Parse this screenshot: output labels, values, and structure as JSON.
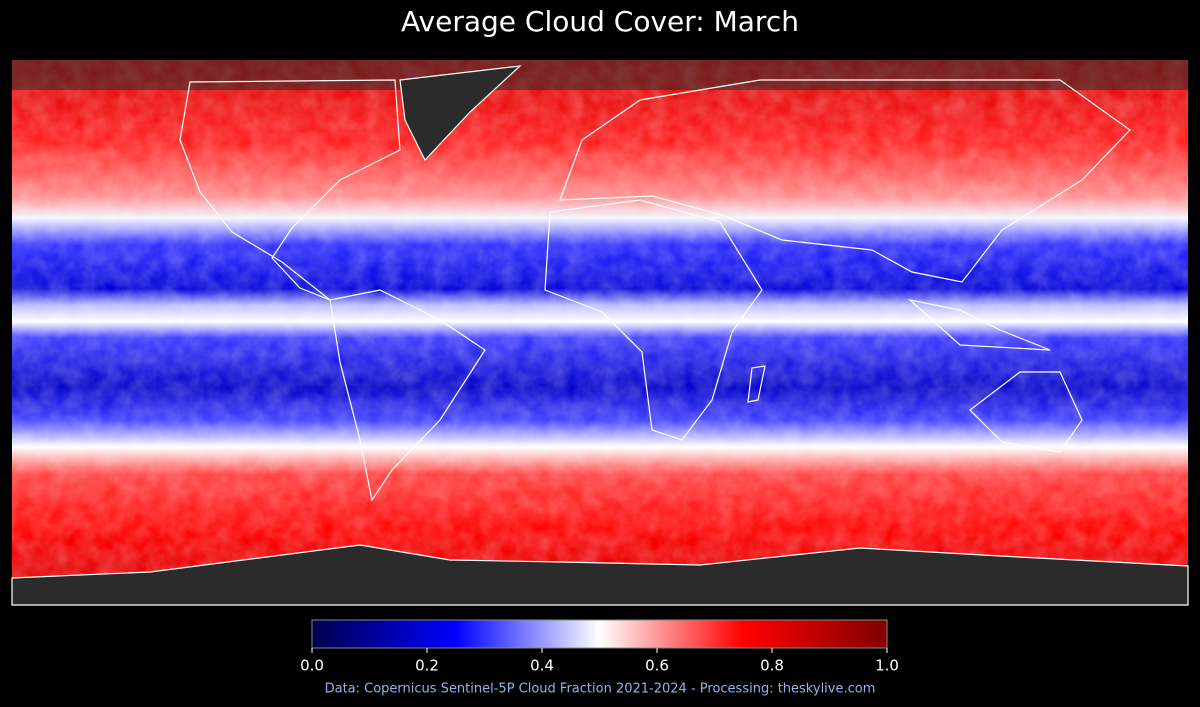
{
  "title": "Average Cloud Cover: March",
  "colorbar": {
    "lim": [
      0,
      1
    ],
    "ticks": [
      {
        "value": 0,
        "label": "0.0"
      },
      {
        "value": 0.2,
        "label": "0.2"
      },
      {
        "value": 0.4,
        "label": "0.4"
      },
      {
        "value": 0.6,
        "label": "0.6"
      },
      {
        "value": 0.8,
        "label": "0.8"
      },
      {
        "value": 1,
        "label": "1.0"
      }
    ]
  },
  "credit": "Data: Copernicus Sentinel-5P Cloud Fraction 2021-2024 - Processing: theskylive.com"
}
